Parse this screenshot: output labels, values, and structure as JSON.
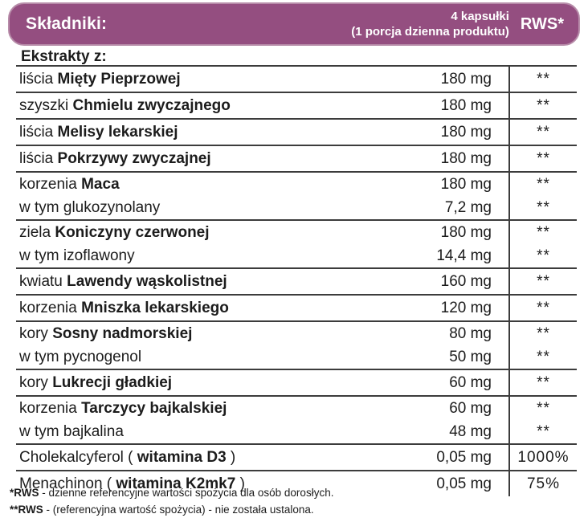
{
  "header": {
    "title": "Składniki:",
    "serving_line1": "4 kapsułki",
    "serving_line2": "(1 porcja dzienna produktu)",
    "rws_label": "RWS*"
  },
  "section_label": "Ekstrakty z:",
  "rows": [
    {
      "lines": [
        {
          "pre": "liścia ",
          "bold": "Mięty Pieprzowej",
          "post": "",
          "amount": "180 mg",
          "rws": "**"
        }
      ]
    },
    {
      "lines": [
        {
          "pre": "szyszki ",
          "bold": "Chmielu zwyczajnego",
          "post": "",
          "amount": "180 mg",
          "rws": "**"
        }
      ]
    },
    {
      "lines": [
        {
          "pre": "liścia ",
          "bold": "Melisy lekarskiej",
          "post": "",
          "amount": "180 mg",
          "rws": "**"
        }
      ]
    },
    {
      "lines": [
        {
          "pre": "liścia ",
          "bold": "Pokrzywy zwyczajnej",
          "post": "",
          "amount": "180 mg",
          "rws": "**"
        }
      ]
    },
    {
      "lines": [
        {
          "pre": "korzenia ",
          "bold": "Maca",
          "post": "",
          "amount": "180 mg",
          "rws": "**"
        },
        {
          "pre": "w tym glukozynolany",
          "bold": "",
          "post": "",
          "amount": "7,2 mg",
          "rws": "**"
        }
      ]
    },
    {
      "lines": [
        {
          "pre": "ziela ",
          "bold": "Koniczyny czerwonej",
          "post": "",
          "amount": "180 mg",
          "rws": "**"
        },
        {
          "pre": "w tym izoflawony",
          "bold": "",
          "post": "",
          "amount": "14,4 mg",
          "rws": "**"
        }
      ]
    },
    {
      "lines": [
        {
          "pre": "kwiatu ",
          "bold": "Lawendy wąskolistnej",
          "post": "",
          "amount": "160 mg",
          "rws": "**"
        }
      ]
    },
    {
      "lines": [
        {
          "pre": "korzenia ",
          "bold": "Mniszka lekarskiego",
          "post": "",
          "amount": "120 mg",
          "rws": "**"
        }
      ]
    },
    {
      "lines": [
        {
          "pre": "kory ",
          "bold": "Sosny nadmorskiej",
          "post": "",
          "amount": "80 mg",
          "rws": "**"
        },
        {
          "pre": "w tym pycnogenol",
          "bold": "",
          "post": "",
          "amount": "50 mg",
          "rws": "**"
        }
      ]
    },
    {
      "lines": [
        {
          "pre": "kory ",
          "bold": "Lukrecji gładkiej",
          "post": "",
          "amount": "60 mg",
          "rws": "**"
        }
      ]
    },
    {
      "lines": [
        {
          "pre": "korzenia ",
          "bold": "Tarczycy bajkalskiej",
          "post": "",
          "amount": "60 mg",
          "rws": "**"
        },
        {
          "pre": "w tym bajkalina",
          "bold": "",
          "post": "",
          "amount": "48 mg",
          "rws": "**"
        }
      ]
    },
    {
      "lines": [
        {
          "pre": "Cholekalcyferol ( ",
          "bold": "witamina D3",
          "post": " )",
          "amount": "0,05 mg",
          "rws": "1000%"
        }
      ]
    },
    {
      "lines": [
        {
          "pre": "Menachinon ( ",
          "bold": "witamina K2mk7",
          "post": " )",
          "amount": "0,05 mg",
          "rws": "75%"
        }
      ]
    }
  ],
  "footnotes": [
    {
      "bold": "*RWS",
      "text": " - dzienne referencyjne wartości spożycia dla osób dorosłych."
    },
    {
      "bold": "**RWS",
      "text": " - (referencyjna wartość spożycia) - nie została ustalona."
    }
  ],
  "colors": {
    "header_bg": "#944E80",
    "header_border": "#B78CA9",
    "table_line": "#3C3C3C",
    "text": "#1C1C1C"
  }
}
